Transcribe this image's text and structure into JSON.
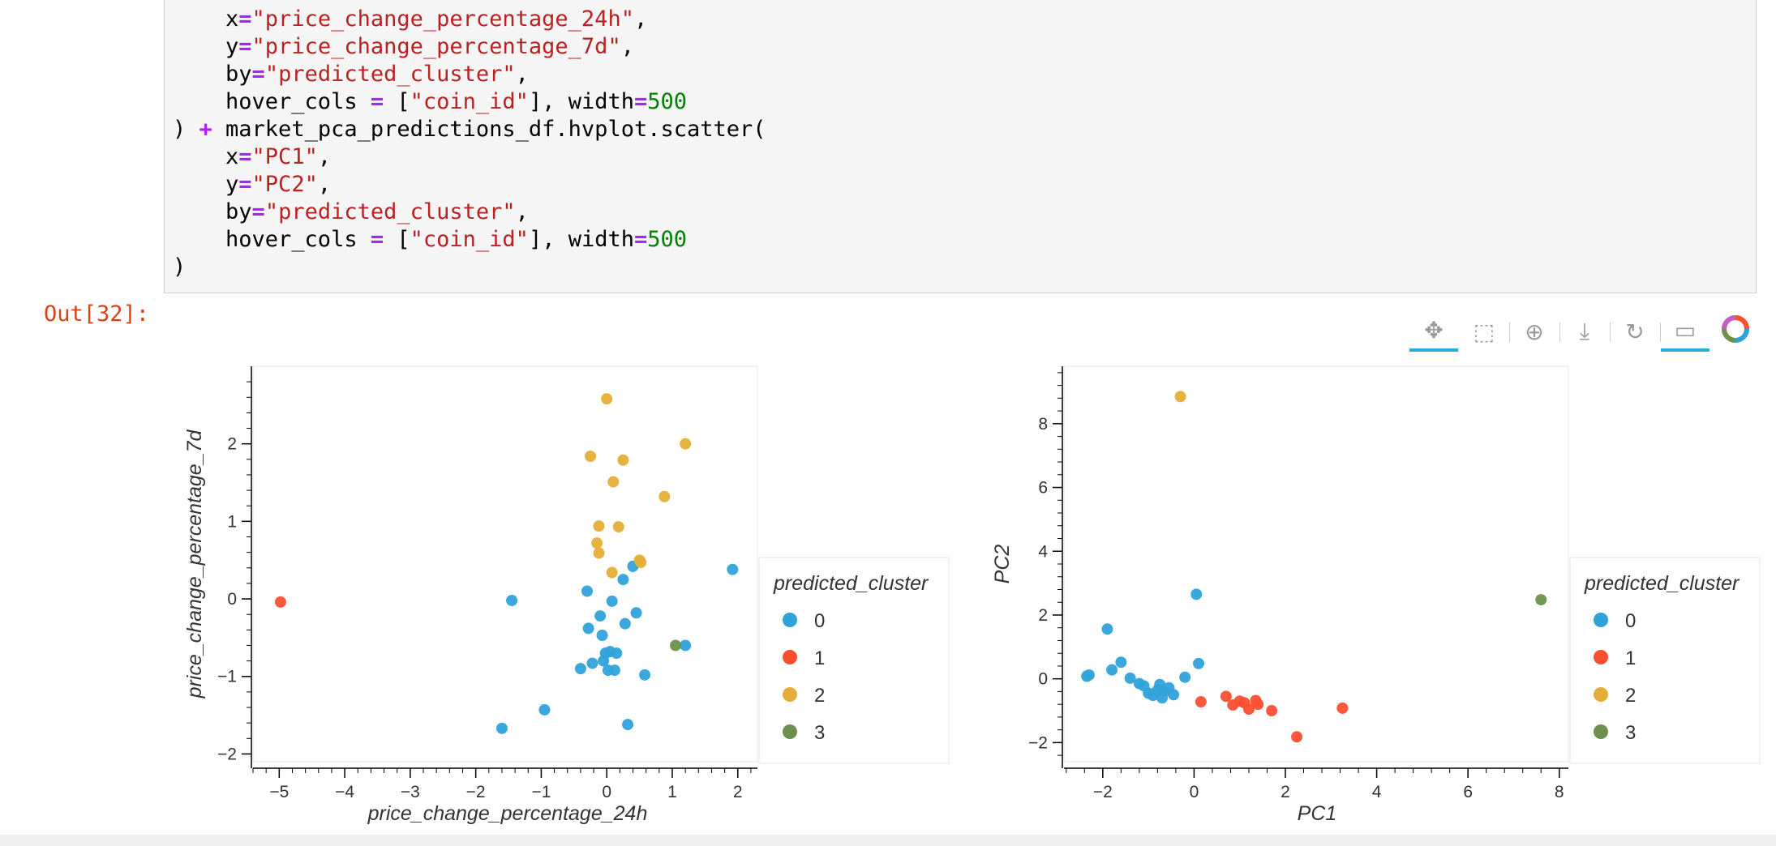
{
  "code": [
    [
      {
        "t": "    x"
      },
      {
        "t": "=",
        "c": "o"
      },
      {
        "t": "\"price_change_percentage_24h\"",
        "c": "s"
      },
      {
        "t": ","
      }
    ],
    [
      {
        "t": "    y"
      },
      {
        "t": "=",
        "c": "o"
      },
      {
        "t": "\"price_change_percentage_7d\"",
        "c": "s"
      },
      {
        "t": ","
      }
    ],
    [
      {
        "t": "    by"
      },
      {
        "t": "=",
        "c": "o"
      },
      {
        "t": "\"predicted_cluster\"",
        "c": "s"
      },
      {
        "t": ","
      }
    ],
    [
      {
        "t": "    hover_cols "
      },
      {
        "t": "=",
        "c": "o"
      },
      {
        "t": " ["
      },
      {
        "t": "\"coin_id\"",
        "c": "s"
      },
      {
        "t": "], width"
      },
      {
        "t": "=",
        "c": "o"
      },
      {
        "t": "500",
        "c": "n"
      }
    ],
    [
      {
        "t": ") "
      },
      {
        "t": "+",
        "c": "o"
      },
      {
        "t": " market_pca_predictions_df.hvplot.scatter("
      }
    ],
    [
      {
        "t": "    x"
      },
      {
        "t": "=",
        "c": "o"
      },
      {
        "t": "\"PC1\"",
        "c": "s"
      },
      {
        "t": ","
      }
    ],
    [
      {
        "t": "    y"
      },
      {
        "t": "=",
        "c": "o"
      },
      {
        "t": "\"PC2\"",
        "c": "s"
      },
      {
        "t": ","
      }
    ],
    [
      {
        "t": "    by"
      },
      {
        "t": "=",
        "c": "o"
      },
      {
        "t": "\"predicted_cluster\"",
        "c": "s"
      },
      {
        "t": ","
      }
    ],
    [
      {
        "t": "    hover_cols "
      },
      {
        "t": "=",
        "c": "o"
      },
      {
        "t": " ["
      },
      {
        "t": "\"coin_id\"",
        "c": "s"
      },
      {
        "t": "], width"
      },
      {
        "t": "=",
        "c": "o"
      },
      {
        "t": "500",
        "c": "n"
      }
    ],
    [
      {
        "t": ")"
      }
    ]
  ],
  "output_prompt": "Out[32]:",
  "toolbar": [
    {
      "name": "pan-tool-button",
      "icon": "move-icon",
      "glyph": "✥",
      "active": true
    },
    {
      "name": "box-zoom-tool-button",
      "icon": "box-zoom-icon",
      "glyph": "⬚",
      "active": false
    },
    {
      "name": "wheel-zoom-tool-button",
      "icon": "wheel-zoom-icon",
      "glyph": "⊕",
      "active": false
    },
    {
      "name": "save-tool-button",
      "icon": "download-icon",
      "glyph": "⤓",
      "active": false
    },
    {
      "name": "reset-tool-button",
      "icon": "reset-icon",
      "glyph": "↻",
      "active": false
    },
    {
      "name": "hover-tool-button",
      "icon": "comment-icon",
      "glyph": "▭",
      "active": true
    },
    {
      "name": "bokeh-logo-button",
      "icon": "bokeh-logo-icon",
      "glyph": "",
      "active": false
    }
  ],
  "cluster_colors": {
    "0": "#30a2da",
    "1": "#fc4f30",
    "2": "#e5ae38",
    "3": "#6d904f"
  },
  "chart_data": [
    {
      "type": "scatter",
      "xlabel": "price_change_percentage_24h",
      "ylabel": "price_change_percentage_7d",
      "xlim": [
        -5.4,
        2.3
      ],
      "ylim": [
        -2.1,
        3.0
      ],
      "xticks": [
        -5,
        -4,
        -3,
        -2,
        -1,
        0,
        1,
        2
      ],
      "yticks": [
        -2,
        -1,
        0,
        1,
        2
      ],
      "legend_title": "predicted_cluster",
      "legend_position": "right",
      "series": [
        {
          "name": "0",
          "points": [
            [
              -1.6,
              -1.67
            ],
            [
              -1.45,
              -0.02
            ],
            [
              -0.95,
              -1.43
            ],
            [
              -0.4,
              -0.9
            ],
            [
              -0.3,
              0.1
            ],
            [
              -0.28,
              -0.38
            ],
            [
              -0.22,
              -0.83
            ],
            [
              -0.1,
              -0.22
            ],
            [
              -0.07,
              -0.47
            ],
            [
              -0.05,
              -0.8
            ],
            [
              -0.02,
              -0.7
            ],
            [
              0.02,
              -0.92
            ],
            [
              0.05,
              -0.68
            ],
            [
              0.08,
              -0.03
            ],
            [
              0.12,
              -0.92
            ],
            [
              0.15,
              -0.7
            ],
            [
              0.25,
              0.25
            ],
            [
              0.28,
              -0.32
            ],
            [
              0.32,
              -1.62
            ],
            [
              0.4,
              0.42
            ],
            [
              0.45,
              -0.18
            ],
            [
              0.58,
              -0.98
            ],
            [
              1.2,
              -0.6
            ],
            [
              1.92,
              0.38
            ]
          ]
        },
        {
          "name": "1",
          "points": [
            [
              -4.98,
              -0.04
            ]
          ]
        },
        {
          "name": "2",
          "points": [
            [
              0.0,
              2.58
            ],
            [
              -0.25,
              1.84
            ],
            [
              0.25,
              1.79
            ],
            [
              1.2,
              2.0
            ],
            [
              0.1,
              1.51
            ],
            [
              0.88,
              1.32
            ],
            [
              -0.12,
              0.94
            ],
            [
              0.18,
              0.93
            ],
            [
              -0.15,
              0.72
            ],
            [
              -0.12,
              0.59
            ],
            [
              0.5,
              0.5
            ],
            [
              0.52,
              0.47
            ],
            [
              0.08,
              0.34
            ]
          ]
        },
        {
          "name": "3",
          "points": [
            [
              1.05,
              -0.6
            ]
          ]
        }
      ]
    },
    {
      "type": "scatter",
      "xlabel": "PC1",
      "ylabel": "PC2",
      "xlim": [
        -2.85,
        8.2
      ],
      "ylim": [
        -2.6,
        9.8
      ],
      "xticks": [
        -2,
        0,
        2,
        4,
        6,
        8
      ],
      "yticks": [
        -2,
        0,
        2,
        4,
        6,
        8
      ],
      "legend_title": "predicted_cluster",
      "legend_position": "right",
      "series": [
        {
          "name": "0",
          "points": [
            [
              -2.35,
              0.08
            ],
            [
              -2.3,
              0.12
            ],
            [
              -1.9,
              1.56
            ],
            [
              -1.8,
              0.28
            ],
            [
              -1.6,
              0.52
            ],
            [
              -1.4,
              0.02
            ],
            [
              -1.2,
              -0.15
            ],
            [
              -1.1,
              -0.22
            ],
            [
              -1.0,
              -0.45
            ],
            [
              -0.9,
              -0.52
            ],
            [
              -0.8,
              -0.35
            ],
            [
              -0.75,
              -0.18
            ],
            [
              -0.7,
              -0.6
            ],
            [
              -0.65,
              -0.4
            ],
            [
              -0.55,
              -0.28
            ],
            [
              -0.45,
              -0.5
            ],
            [
              -0.2,
              0.05
            ],
            [
              0.05,
              2.65
            ],
            [
              0.1,
              0.48
            ]
          ]
        },
        {
          "name": "1",
          "points": [
            [
              0.15,
              -0.72
            ],
            [
              0.7,
              -0.55
            ],
            [
              0.85,
              -0.82
            ],
            [
              1.0,
              -0.7
            ],
            [
              1.1,
              -0.75
            ],
            [
              1.2,
              -0.95
            ],
            [
              1.35,
              -0.68
            ],
            [
              1.4,
              -0.8
            ],
            [
              1.7,
              -1.0
            ],
            [
              2.25,
              -1.82
            ],
            [
              3.25,
              -0.92
            ]
          ]
        },
        {
          "name": "2",
          "points": [
            [
              -0.3,
              8.85
            ]
          ]
        },
        {
          "name": "3",
          "points": [
            [
              7.6,
              2.48
            ]
          ]
        }
      ]
    }
  ]
}
